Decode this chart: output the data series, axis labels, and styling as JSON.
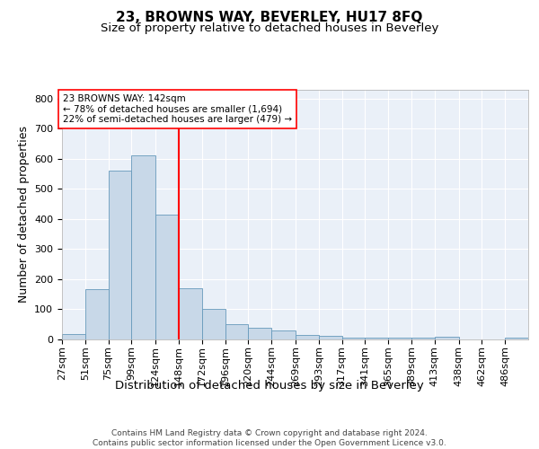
{
  "title": "23, BROWNS WAY, BEVERLEY, HU17 8FQ",
  "subtitle": "Size of property relative to detached houses in Beverley",
  "xlabel": "Distribution of detached houses by size in Beverley",
  "ylabel": "Number of detached properties",
  "bar_color": "#c8d8e8",
  "bar_edge_color": "#6699bb",
  "background_color": "#eaf0f8",
  "property_size": 142,
  "red_line_x": 148,
  "annotation_text": "23 BROWNS WAY: 142sqm\n← 78% of detached houses are smaller (1,694)\n22% of semi-detached houses are larger (479) →",
  "bins": [
    27,
    51,
    75,
    99,
    124,
    148,
    172,
    196,
    220,
    244,
    269,
    293,
    317,
    341,
    365,
    389,
    413,
    438,
    462,
    486,
    510
  ],
  "bar_heights": [
    15,
    165,
    560,
    612,
    415,
    170,
    100,
    50,
    38,
    28,
    12,
    10,
    5,
    3,
    3,
    3,
    6,
    0,
    0,
    5
  ],
  "ylim": [
    0,
    830
  ],
  "yticks": [
    0,
    100,
    200,
    300,
    400,
    500,
    600,
    700,
    800
  ],
  "footer_text": "Contains HM Land Registry data © Crown copyright and database right 2024.\nContains public sector information licensed under the Open Government Licence v3.0.",
  "title_fontsize": 11,
  "subtitle_fontsize": 9.5,
  "axis_label_fontsize": 9,
  "tick_fontsize": 8,
  "footer_fontsize": 6.5
}
